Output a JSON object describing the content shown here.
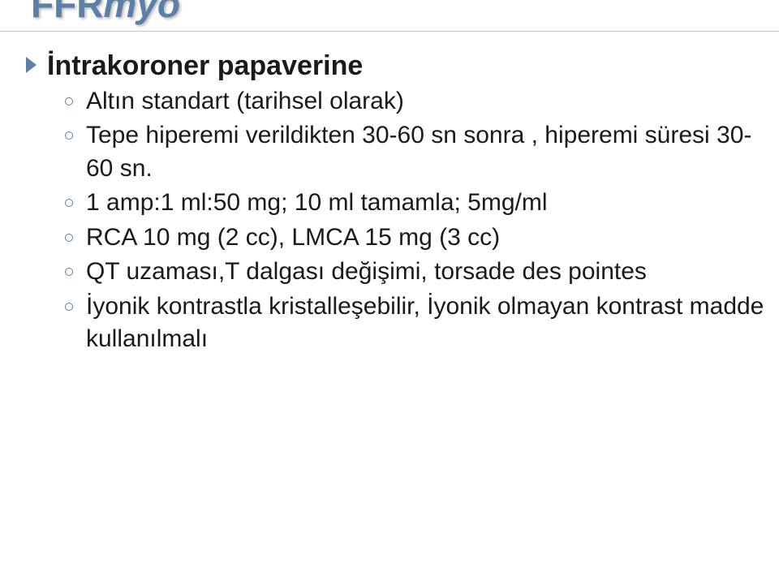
{
  "title_main": "FFR",
  "title_italic": "myo",
  "colors": {
    "title": "#5b7fa6",
    "bullet": "#5b7fa6",
    "underline": "#c0c0c0",
    "text": "#1a1a1a",
    "background": "#ffffff"
  },
  "bullets": {
    "l1": "İntrakoroner papaverine",
    "l2": [
      "Altın standart (tarihsel olarak)",
      "Tepe hiperemi verildikten 30-60 sn sonra , hiperemi süresi 30-60 sn.",
      "1 amp:1 ml:50 mg; 10 ml tamamla; 5mg/ml",
      "RCA 10 mg (2 cc), LMCA 15 mg (3 cc)",
      "QT uzaması,T dalgası değişimi, torsade des pointes",
      "İyonik kontrastla kristalleşebilir, İyonik olmayan kontrast madde kullanılmalı"
    ]
  }
}
